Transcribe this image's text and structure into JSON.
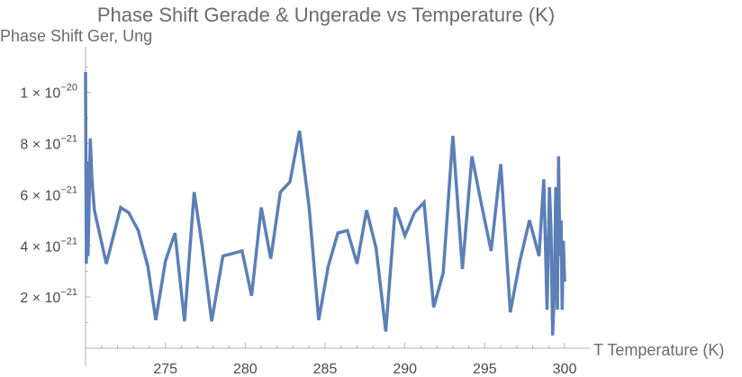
{
  "chart_data": {
    "type": "line",
    "title": "Phase Shift Gerade & Ungerade vs Temperature (K)",
    "xlabel": "T Temperature (K)",
    "ylabel": "Phase Shift Ger, Ung",
    "xlim": [
      270,
      300
    ],
    "ylim": [
      0,
      1.15e-20
    ],
    "x_ticks": [
      275,
      280,
      285,
      290,
      295,
      300
    ],
    "y_ticks": [
      {
        "value": 2e-21,
        "mantissa": "2",
        "exponent": "−21"
      },
      {
        "value": 4e-21,
        "mantissa": "4",
        "exponent": "−21"
      },
      {
        "value": 6e-21,
        "mantissa": "6",
        "exponent": "−21"
      },
      {
        "value": 8e-21,
        "mantissa": "8",
        "exponent": "−21"
      },
      {
        "value": 1e-20,
        "mantissa": "1",
        "exponent": "−20"
      }
    ],
    "grid": false,
    "legend": "none",
    "series_color": "#5b7fb6",
    "axis_color": "#b0b0b0",
    "series": [
      {
        "x": [
          270.0,
          270.05,
          270.1,
          270.15,
          270.2,
          270.3,
          270.4,
          270.55,
          271.3,
          272.2,
          272.7,
          273.3,
          273.9,
          274.4,
          275.0,
          275.6,
          276.2,
          276.8,
          277.3,
          277.9,
          278.6,
          279.2,
          279.8,
          280.4,
          281.0,
          281.6,
          282.2,
          282.8,
          283.4,
          284.0,
          284.6,
          285.2,
          285.8,
          286.4,
          287.0,
          287.6,
          288.2,
          288.8,
          289.4,
          290.0,
          290.6,
          291.2,
          291.8,
          292.4,
          293.0,
          293.6,
          294.2,
          294.8,
          295.4,
          296.0,
          296.6,
          297.2,
          297.8,
          298.4,
          298.7,
          298.9,
          299.05,
          299.15,
          299.25,
          299.35,
          299.45,
          299.55,
          299.62,
          299.7,
          299.78,
          299.85,
          299.92,
          300.0
        ],
        "y": [
          1.08e-20,
          3.3e-21,
          7.3e-21,
          3.6e-21,
          4.8e-21,
          8.2e-21,
          6.6e-21,
          5.4e-21,
          3.3e-21,
          5.5e-21,
          5.3e-21,
          4.6e-21,
          3.2e-21,
          1.1e-21,
          3.4e-21,
          4.5e-21,
          1.05e-21,
          6.1e-21,
          4e-21,
          1.05e-21,
          3.6e-21,
          3.7e-21,
          3.8e-21,
          2.05e-21,
          5.5e-21,
          3.5e-21,
          6.1e-21,
          6.5e-21,
          8.5e-21,
          5.5e-21,
          1.1e-21,
          3.2e-21,
          4.5e-21,
          4.6e-21,
          3.3e-21,
          5.4e-21,
          3.9e-21,
          6.5e-22,
          5.5e-21,
          4.4e-21,
          5.3e-21,
          5.7e-21,
          1.6e-21,
          2.95e-21,
          8.3e-21,
          3.1e-21,
          7.5e-21,
          5.6e-21,
          3.8e-21,
          7.2e-21,
          1.4e-21,
          3.4e-21,
          5e-21,
          3.6e-21,
          6.6e-21,
          1.5e-21,
          6.3e-21,
          4.6e-21,
          5e-22,
          2.1e-21,
          6.3e-21,
          1.5e-21,
          7.5e-21,
          3.6e-21,
          5e-21,
          1.5e-21,
          4.2e-21,
          2.6e-21
        ]
      }
    ]
  }
}
